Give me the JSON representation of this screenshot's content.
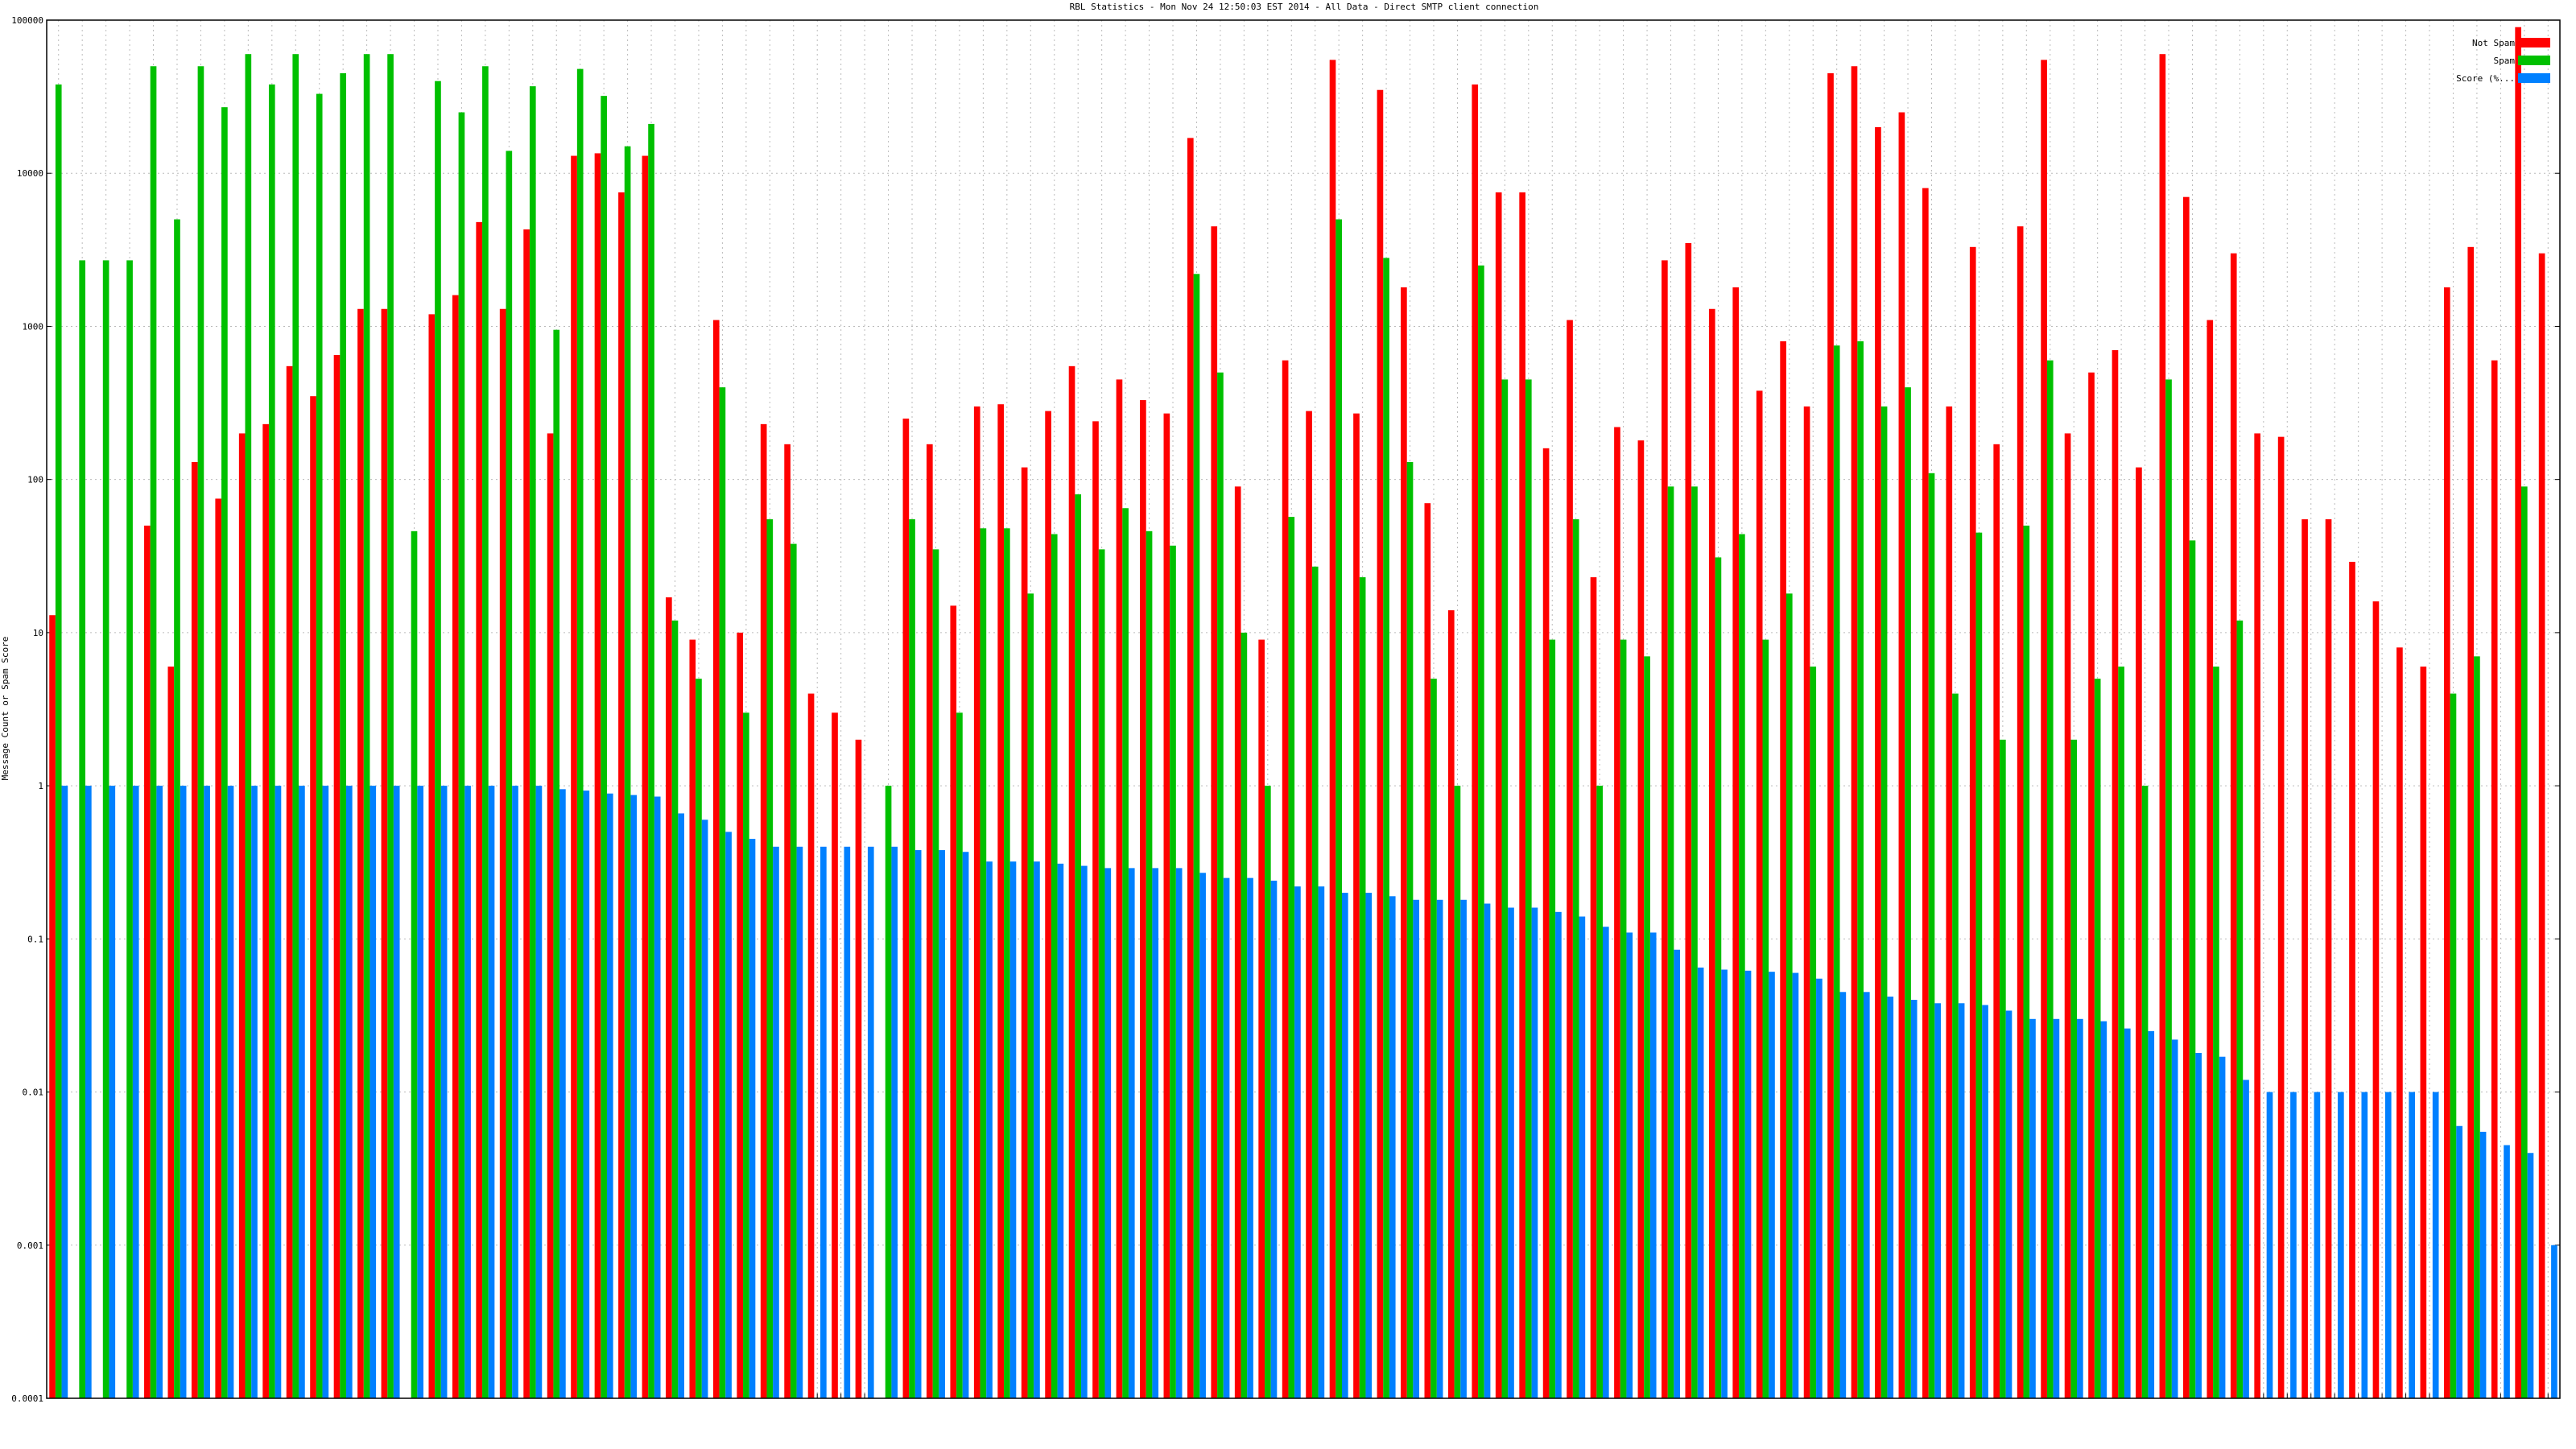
{
  "chart_data": {
    "type": "bar",
    "title": "RBL Statistics - Mon Nov 24 12:50:03 EST 2014 - All Data - Direct SMTP client connection",
    "y_label": "Message Count or Spam Score",
    "log_scale": true,
    "grid": true,
    "legend": "upper right",
    "ylim": [
      0.0001,
      100000
    ],
    "yticks": [
      0.0001,
      0.001,
      0.01,
      0.1,
      1,
      10,
      100,
      1000,
      10000,
      100000
    ],
    "categories": [
      null,
      null,
      null,
      null,
      null,
      null,
      null,
      null,
      null,
      null,
      null,
      null,
      null,
      null,
      null,
      null,
      null,
      null,
      null,
      null,
      null,
      null,
      null,
      null,
      null,
      null,
      null,
      null,
      null,
      null,
      null,
      null,
      null,
      null,
      null,
      null,
      null,
      null,
      null,
      null,
      null,
      null,
      null,
      null,
      null,
      null,
      null,
      null,
      null,
      null,
      null,
      null,
      null,
      null,
      null,
      null,
      null,
      null,
      null,
      null,
      null,
      null,
      null,
      null,
      null,
      null,
      null,
      null,
      null,
      null,
      null,
      null,
      null,
      null,
      null,
      null,
      null,
      null,
      null,
      null,
      null,
      null,
      null,
      null,
      null,
      null,
      null,
      null,
      null,
      null,
      null,
      null,
      null,
      null,
      null,
      null,
      null,
      null,
      null,
      null,
      null,
      null,
      null,
      null,
      null,
      null
    ],
    "series": [
      {
        "name": "Not Spam",
        "color": "#ff0000",
        "values": [
          13,
          null,
          null,
          null,
          50,
          6,
          130,
          75,
          200,
          230,
          550,
          350,
          650,
          1300,
          1300,
          null,
          1200,
          1600,
          4800,
          1300,
          4300,
          200,
          13000,
          13500,
          7500,
          13000,
          17,
          9,
          1100,
          10,
          230,
          170,
          4,
          3,
          2,
          null,
          250,
          170,
          15,
          300,
          310,
          120,
          280,
          550,
          240,
          450,
          330,
          270,
          17000,
          4500,
          90,
          9,
          600,
          280,
          55000,
          270,
          35000,
          1800,
          70,
          14,
          38000,
          7500,
          7500,
          160,
          1100,
          23,
          220,
          180,
          2700,
          3500,
          1300,
          1800,
          380,
          800,
          300,
          45000,
          50000,
          20000,
          25000,
          8000,
          300,
          3300,
          170,
          4500,
          55000,
          200,
          500,
          700,
          120,
          60000,
          7000,
          1100,
          3000,
          200,
          190,
          55,
          55,
          29,
          16,
          8,
          6,
          1800,
          3300,
          600,
          90000,
          3000
        ]
      },
      {
        "name": "Spam",
        "color": "#00c000",
        "values": [
          38000,
          2700,
          2700,
          2700,
          50000,
          5000,
          50000,
          27000,
          60000,
          38000,
          60000,
          33000,
          45000,
          60000,
          60000,
          46,
          40000,
          25000,
          50000,
          14000,
          37000,
          950,
          48000,
          32000,
          15000,
          21000,
          12,
          5,
          400,
          3,
          55,
          38,
          null,
          null,
          null,
          1,
          55,
          35,
          3,
          48,
          48,
          18,
          44,
          80,
          35,
          65,
          46,
          37,
          2200,
          500,
          10,
          1,
          57,
          27,
          5000,
          23,
          2800,
          130,
          5,
          1,
          2500,
          450,
          450,
          9,
          55,
          1,
          9,
          7,
          90,
          90,
          31,
          44,
          9,
          18,
          6,
          750,
          800,
          300,
          400,
          110,
          4,
          45,
          2,
          50,
          600,
          2,
          5,
          6,
          1,
          450,
          40,
          6,
          12,
          null,
          null,
          null,
          null,
          null,
          null,
          null,
          null,
          4,
          7,
          null,
          90,
          null
        ]
      },
      {
        "name": "Score (%...",
        "color": "#0080ff",
        "values": [
          1,
          1,
          1,
          1,
          1,
          1,
          1,
          1,
          1,
          1,
          1,
          1,
          1,
          1,
          1,
          1,
          1,
          1,
          1,
          1,
          1,
          0.95,
          0.93,
          0.89,
          0.87,
          0.85,
          0.66,
          0.6,
          0.5,
          0.45,
          0.4,
          0.4,
          0.4,
          0.4,
          0.4,
          0.4,
          0.38,
          0.38,
          0.37,
          0.32,
          0.32,
          0.32,
          0.31,
          0.3,
          0.29,
          0.29,
          0.29,
          0.29,
          0.27,
          0.25,
          0.25,
          0.24,
          0.22,
          0.22,
          0.2,
          0.2,
          0.19,
          0.18,
          0.18,
          0.18,
          0.17,
          0.16,
          0.16,
          0.15,
          0.14,
          0.12,
          0.11,
          0.11,
          0.085,
          0.065,
          0.063,
          0.062,
          0.061,
          0.06,
          0.055,
          0.045,
          0.045,
          0.042,
          0.04,
          0.038,
          0.038,
          0.037,
          0.034,
          0.03,
          0.03,
          0.03,
          0.029,
          0.026,
          0.025,
          0.022,
          0.018,
          0.017,
          0.012,
          0.01,
          0.01,
          0.01,
          0.01,
          0.01,
          0.01,
          0.01,
          0.01,
          0.006,
          0.0055,
          0.0045,
          0.004,
          0.001
        ]
      }
    ]
  }
}
